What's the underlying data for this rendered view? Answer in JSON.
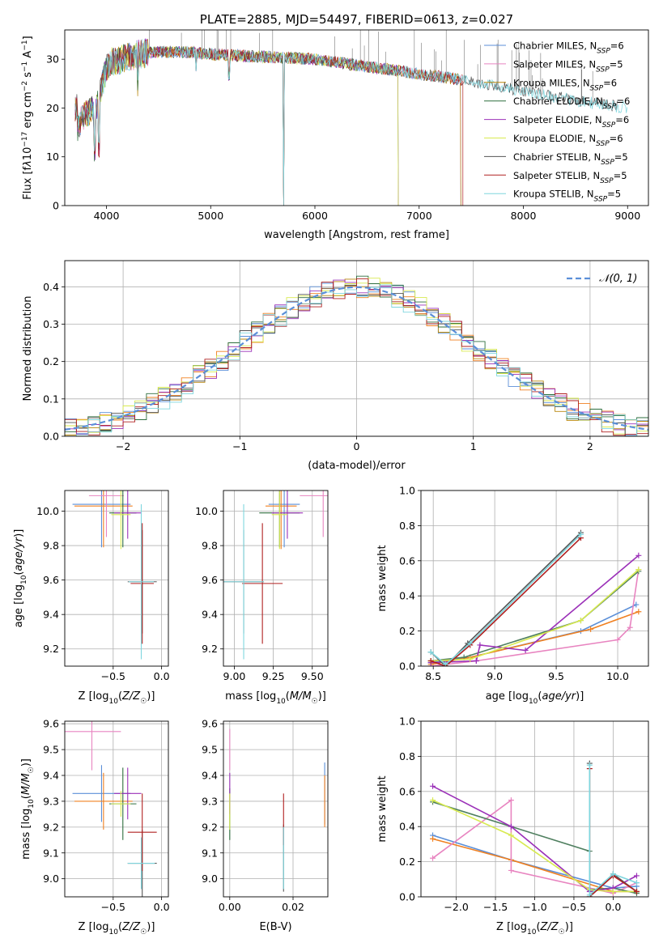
{
  "colors": {
    "Chabrier MILES": "#5b8fd8",
    "Salpeter MILES": "#e884c0",
    "Kroupa MILES": "#b8860b",
    "Chabrier ELODIE": "#2e6e3e",
    "Salpeter ELODIE": "#9b30b8",
    "Kroupa ELODIE": "#d8ea50",
    "Chabrier STELIB": "#555555",
    "Salpeter STELIB": "#b02020",
    "Kroupa STELIB": "#7fd6de",
    "normal": "#5b8fd8",
    "orange": "#f08020",
    "green": "#3a9a3a"
  },
  "chart_data": [
    {
      "id": "spectrum",
      "type": "line",
      "title": "PLATE=2885, MJD=54497, FIBERID=0613, z=0.027",
      "xlabel": "wavelength [Angstrom, rest frame]",
      "ylabel": "Flux [fλ10⁻¹⁷ erg cm⁻² s⁻¹ A⁻¹]",
      "xlim": [
        3600,
        9200
      ],
      "ylim": [
        0,
        36
      ],
      "xticks": [
        "4000",
        "5000",
        "6000",
        "7000",
        "8000",
        "9000"
      ],
      "yticks": [
        "0",
        "10",
        "20",
        "30"
      ],
      "legend": [
        "Chabrier MILES, N_SSP=6",
        "Salpeter MILES, N_SSP=5",
        "Kroupa MILES, N_SSP=6",
        "Chabrier ELODIE, N_SSP=6",
        "Salpeter ELODIE, N_SSP=6",
        "Kroupa ELODIE, N_SSP=6",
        "Chabrier STELIB, N_SSP=5",
        "Salpeter STELIB, N_SSP=5",
        "Kroupa STELIB, N_SSP=5"
      ],
      "legend_position": "top-right",
      "series_range": {
        "Chabrier MILES": [
          3700,
          7400
        ],
        "Salpeter MILES": [
          3700,
          7400
        ],
        "Kroupa MILES": [
          3700,
          7400
        ],
        "Chabrier ELODIE": [
          3700,
          6800
        ],
        "Salpeter ELODIE": [
          3700,
          6800
        ],
        "Kroupa ELODIE": [
          3700,
          6800
        ],
        "Chabrier STELIB": [
          3700,
          8900
        ],
        "Salpeter STELIB": [
          3700,
          7420
        ],
        "Kroupa STELIB": [
          3700,
          9000
        ]
      },
      "continuum_x": [
        3720,
        3800,
        3900,
        3950,
        4000,
        4050,
        4150,
        4300,
        4500,
        4800,
        5000,
        5500,
        6000,
        6500,
        7000,
        7500,
        8000,
        8500,
        9000
      ],
      "continuum_y": [
        16,
        19,
        20,
        24,
        28,
        29.5,
        30,
        31,
        31.5,
        31.5,
        31,
        30.5,
        30,
        28.5,
        27,
        25.5,
        23.5,
        21.5,
        20
      ]
    },
    {
      "id": "residuals",
      "type": "line",
      "xlabel": "(data-model)/error",
      "ylabel": "Normed distribution",
      "xlim": [
        -2.5,
        2.5
      ],
      "ylim": [
        0,
        0.47
      ],
      "xticks": [
        "−2",
        "−1",
        "0",
        "1",
        "2"
      ],
      "yticks": [
        "0.0",
        "0.1",
        "0.2",
        "0.3",
        "0.4"
      ],
      "legend": [
        "𝒩(0, 1)"
      ],
      "legend_position": "top-right",
      "grid": true,
      "bin_width": 0.1
    },
    {
      "id": "age_vs_z",
      "type": "scatter",
      "xlabel": "Z [log₁₀(Z/Z☉)]",
      "ylabel": "age  [log₁₀(age/yr)]",
      "xlim": [
        -1.0,
        0.07
      ],
      "ylim": [
        9.1,
        10.12
      ],
      "xticks": [
        "−0.5",
        "0.0"
      ],
      "yticks": [
        "9.2",
        "9.4",
        "9.6",
        "9.8",
        "10.0"
      ],
      "grid": true,
      "points": [
        {
          "c": "Chabrier MILES",
          "x": -0.62,
          "xerr": 0.3,
          "y": 10.04,
          "yerr": 0.25
        },
        {
          "c": "Kroupa MILES",
          "x": -0.6,
          "xerr": 0.3,
          "y": 10.03,
          "yerr": 0.24
        },
        {
          "c": "Salpeter MILES",
          "x": -0.57,
          "xerr": 0.18,
          "y": 10.09,
          "yerr": 0.24
        },
        {
          "c": "Chabrier ELODIE",
          "x": -0.4,
          "xerr": 0.14,
          "y": 9.99,
          "yerr": 0.2
        },
        {
          "c": "Salpeter ELODIE",
          "x": -0.35,
          "xerr": 0.14,
          "y": 9.99,
          "yerr": 0.15
        },
        {
          "c": "Kroupa ELODIE",
          "x": -0.42,
          "xerr": 0.1,
          "y": 9.98,
          "yerr": 0.2
        },
        {
          "c": "Chabrier STELIB",
          "x": -0.2,
          "xerr": 0.15,
          "y": 9.59,
          "yerr": 0.3
        },
        {
          "c": "Salpeter STELIB",
          "x": -0.2,
          "xerr": 0.12,
          "y": 9.58,
          "yerr": 0.35
        },
        {
          "c": "Kroupa STELIB",
          "x": -0.21,
          "xerr": 0.13,
          "y": 9.59,
          "yerr": 0.45
        }
      ]
    },
    {
      "id": "age_vs_mass",
      "type": "scatter",
      "xlabel": "mass [log₁₀(M/M☉)]",
      "ylim": [
        9.1,
        10.12
      ],
      "xlim": [
        8.93,
        9.6
      ],
      "xticks": [
        "9.00",
        "9.25",
        "9.50"
      ],
      "yticks": [
        "9.2",
        "9.4",
        "9.6",
        "9.8",
        "10.0"
      ],
      "grid": true,
      "points": [
        {
          "c": "Chabrier MILES",
          "x": 9.32,
          "xerr": 0.1,
          "y": 10.04,
          "yerr": 0.25
        },
        {
          "c": "Kroupa MILES",
          "x": 9.3,
          "xerr": 0.1,
          "y": 10.03,
          "yerr": 0.25
        },
        {
          "c": "Salpeter MILES",
          "x": 9.57,
          "xerr": 0.15,
          "y": 10.09,
          "yerr": 0.24
        },
        {
          "c": "Chabrier ELODIE",
          "x": 9.29,
          "xerr": 0.13,
          "y": 9.99,
          "yerr": 0.2
        },
        {
          "c": "Salpeter ELODIE",
          "x": 9.34,
          "xerr": 0.1,
          "y": 9.99,
          "yerr": 0.15
        },
        {
          "c": "Kroupa ELODIE",
          "x": 9.29,
          "xerr": 0.05,
          "y": 9.98,
          "yerr": 0.2
        },
        {
          "c": "Chabrier STELIB",
          "x": 9.06,
          "xerr": 0.13,
          "y": 9.59,
          "yerr": 0.3
        },
        {
          "c": "Salpeter STELIB",
          "x": 9.18,
          "xerr": 0.13,
          "y": 9.58,
          "yerr": 0.35
        },
        {
          "c": "Kroupa STELIB",
          "x": 9.06,
          "xerr": 0.13,
          "y": 9.59,
          "yerr": 0.45
        }
      ]
    },
    {
      "id": "weight_vs_age",
      "type": "line",
      "xlabel": "age  [log₁₀(age/yr)]",
      "ylabel": "mass weight",
      "xlim": [
        8.4,
        10.25
      ],
      "ylim": [
        0,
        1.0
      ],
      "xticks": [
        "8.5",
        "9.0",
        "9.5",
        "10.0"
      ],
      "yticks": [
        "0.0",
        "0.2",
        "0.4",
        "0.6",
        "0.8",
        "1.0"
      ],
      "grid": true,
      "series": [
        {
          "c": "Chabrier MILES",
          "x": [
            8.48,
            8.8,
            9.7,
            10.15
          ],
          "y": [
            0.02,
            0.05,
            0.2,
            0.35
          ]
        },
        {
          "c": "Kroupa MILES",
          "x": [
            8.48,
            8.8,
            9.78,
            10.17
          ],
          "y": [
            0.01,
            0.05,
            0.21,
            0.31
          ]
        },
        {
          "c": "Salpeter MILES",
          "x": [
            8.48,
            8.85,
            10.0,
            10.1,
            10.17
          ],
          "y": [
            0.0,
            0.03,
            0.15,
            0.22,
            0.55
          ]
        },
        {
          "c": "Chabrier ELODIE",
          "x": [
            8.48,
            8.75,
            9.7,
            10.17
          ],
          "y": [
            0.03,
            0.05,
            0.26,
            0.54
          ]
        },
        {
          "c": "Salpeter ELODIE",
          "x": [
            8.48,
            8.85,
            8.88,
            9.25,
            10.17
          ],
          "y": [
            0.02,
            0.03,
            0.12,
            0.09,
            0.63
          ]
        },
        {
          "c": "Kroupa ELODIE",
          "x": [
            8.48,
            8.8,
            9.7,
            10.17
          ],
          "y": [
            0.03,
            0.04,
            0.26,
            0.55
          ]
        },
        {
          "c": "Chabrier STELIB",
          "x": [
            8.48,
            8.6,
            8.78,
            9.7
          ],
          "y": [
            0.08,
            0.0,
            0.13,
            0.76
          ]
        },
        {
          "c": "Salpeter STELIB",
          "x": [
            8.48,
            8.6,
            8.8,
            9.7
          ],
          "y": [
            0.03,
            0.0,
            0.12,
            0.73
          ]
        },
        {
          "c": "Kroupa STELIB",
          "x": [
            8.48,
            8.6,
            8.8,
            9.7
          ],
          "y": [
            0.08,
            0.01,
            0.13,
            0.75
          ]
        }
      ]
    },
    {
      "id": "mass_vs_z",
      "type": "scatter",
      "xlabel": "Z [log₁₀(Z/Z☉)]",
      "ylabel": "mass [log₁₀(M/M☉)]",
      "xlim": [
        -1.0,
        0.07
      ],
      "ylim": [
        8.93,
        9.61
      ],
      "xticks": [
        "−0.5",
        "0.0"
      ],
      "yticks": [
        "9.0",
        "9.1",
        "9.2",
        "9.3",
        "9.4",
        "9.5",
        "9.6"
      ],
      "grid": true,
      "points": [
        {
          "c": "Chabrier MILES",
          "x": -0.62,
          "xerr": 0.3,
          "y": 9.33,
          "yerr": 0.11
        },
        {
          "c": "Kroupa MILES",
          "x": -0.6,
          "xerr": 0.3,
          "y": 9.3,
          "yerr": 0.11
        },
        {
          "c": "Salpeter MILES",
          "x": -0.72,
          "xerr": 0.3,
          "y": 9.57,
          "yerr": 0.15
        },
        {
          "c": "Chabrier ELODIE",
          "x": -0.4,
          "xerr": 0.14,
          "y": 9.29,
          "yerr": 0.14
        },
        {
          "c": "Salpeter ELODIE",
          "x": -0.35,
          "xerr": 0.14,
          "y": 9.33,
          "yerr": 0.1
        },
        {
          "c": "Kroupa ELODIE",
          "x": -0.42,
          "xerr": 0.1,
          "y": 9.29,
          "yerr": 0.05
        },
        {
          "c": "Chabrier STELIB",
          "x": -0.2,
          "xerr": 0.15,
          "y": 9.06,
          "yerr": 0.13
        },
        {
          "c": "Salpeter STELIB",
          "x": -0.2,
          "xerr": 0.15,
          "y": 9.18,
          "yerr": 0.15
        },
        {
          "c": "Kroupa STELIB",
          "x": -0.21,
          "xerr": 0.14,
          "y": 9.06,
          "yerr": 0.1
        }
      ]
    },
    {
      "id": "mass_vs_ebv",
      "type": "scatter",
      "xlabel": "E(B-V)",
      "xlim": [
        -0.002,
        0.031
      ],
      "ylim": [
        8.93,
        9.61
      ],
      "xticks": [
        "0.00",
        "0.02"
      ],
      "yticks": [
        "9.0",
        "9.1",
        "9.2",
        "9.3",
        "9.4",
        "9.5",
        "9.6"
      ],
      "grid": true,
      "points": [
        {
          "c": "Chabrier MILES",
          "x": 0.03,
          "xerr": 0,
          "y": 9.33,
          "yerr": 0.12
        },
        {
          "c": "Kroupa MILES",
          "x": 0.03,
          "xerr": 0,
          "y": 9.3,
          "yerr": 0.1
        },
        {
          "c": "Salpeter MILES",
          "x": 0.0,
          "xerr": 0,
          "y": 9.5,
          "yerr": 0.08
        },
        {
          "c": "Chabrier ELODIE",
          "x": 0.0,
          "xerr": 0,
          "y": 9.25,
          "yerr": 0.1
        },
        {
          "c": "Salpeter ELODIE",
          "x": 0.0,
          "xerr": 0,
          "y": 9.33,
          "yerr": 0.08
        },
        {
          "c": "Kroupa ELODIE",
          "x": 0.0,
          "xerr": 0,
          "y": 9.26,
          "yerr": 0.07
        },
        {
          "c": "Chabrier STELIB",
          "x": 0.017,
          "xerr": 0,
          "y": 9.08,
          "yerr": 0.13
        },
        {
          "c": "Salpeter STELIB",
          "x": 0.017,
          "xerr": 0,
          "y": 9.23,
          "yerr": 0.1
        },
        {
          "c": "Kroupa STELIB",
          "x": 0.017,
          "xerr": 0,
          "y": 9.08,
          "yerr": 0.12
        }
      ]
    },
    {
      "id": "weight_vs_z",
      "type": "line",
      "xlabel": "Z [log₁₀(Z/Z☉)]",
      "ylabel": "mass weight",
      "xlim": [
        -2.45,
        0.45
      ],
      "ylim": [
        0,
        1.0
      ],
      "xticks": [
        "−2.0",
        "−1.5",
        "−1.0",
        "−0.5",
        "0.0"
      ],
      "yticks": [
        "0.0",
        "0.2",
        "0.4",
        "0.6",
        "0.8",
        "1.0"
      ],
      "grid": true,
      "series": [
        {
          "c": "Chabrier MILES",
          "x": [
            -2.3,
            -1.3,
            0.0,
            0.3
          ],
          "y": [
            0.35,
            0.21,
            0.05,
            0.06
          ]
        },
        {
          "c": "Kroupa MILES",
          "x": [
            -2.3,
            -1.3,
            0.0,
            0.3
          ],
          "y": [
            0.33,
            0.21,
            0.03,
            0.03
          ]
        },
        {
          "c": "Salpeter MILES",
          "x": [
            -2.3,
            -1.3,
            -1.3,
            0.0,
            0.3
          ],
          "y": [
            0.22,
            0.55,
            0.15,
            0.02,
            0.08
          ]
        },
        {
          "c": "Chabrier ELODIE",
          "x": [
            -2.3,
            -0.3,
            -0.3,
            0.0,
            0.3
          ],
          "y": [
            0.54,
            0.26,
            0.04,
            0.05,
            0.02
          ]
        },
        {
          "c": "Salpeter ELODIE",
          "x": [
            -2.3,
            -1.3,
            -0.3,
            0.0,
            0.3
          ],
          "y": [
            0.63,
            0.4,
            0.03,
            0.05,
            0.12
          ]
        },
        {
          "c": "Kroupa ELODIE",
          "x": [
            -2.3,
            -1.3,
            -0.3,
            0.0,
            0.3
          ],
          "y": [
            0.55,
            0.35,
            0.04,
            0.03,
            0.03
          ]
        },
        {
          "c": "Chabrier STELIB",
          "x": [
            -0.3,
            -0.3,
            0.0,
            0.3
          ],
          "y": [
            0.76,
            0.0,
            0.13,
            0.03
          ]
        },
        {
          "c": "Salpeter STELIB",
          "x": [
            -0.3,
            -0.3,
            0.0,
            0.3
          ],
          "y": [
            0.73,
            0.0,
            0.12,
            0.03
          ]
        },
        {
          "c": "Kroupa STELIB",
          "x": [
            -0.3,
            -0.3,
            0.0,
            0.3
          ],
          "y": [
            0.75,
            0.01,
            0.13,
            0.08
          ]
        }
      ]
    }
  ]
}
